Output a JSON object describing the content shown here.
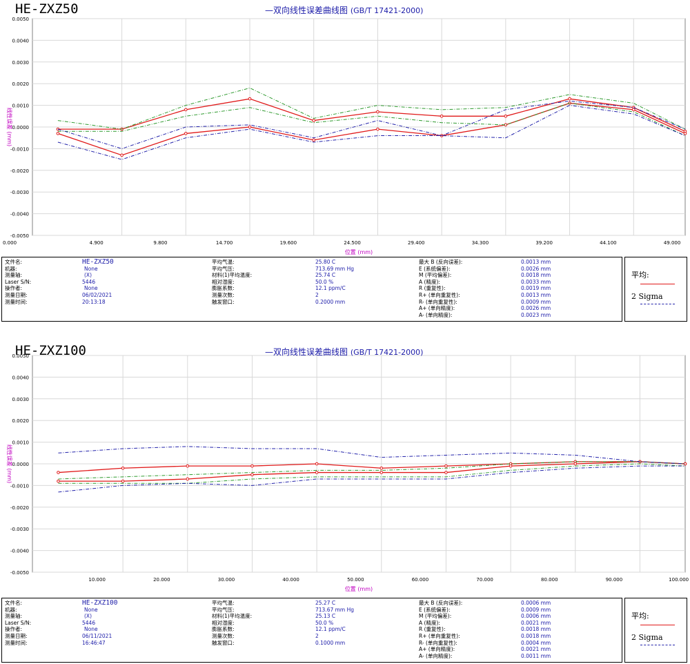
{
  "charts": [
    {
      "title": "HE-ZXZ50",
      "subtitle": "—双向线性误差曲线图",
      "standard": "(GB/T 17421-2000)",
      "info": {
        "col1": [
          {
            "label": "文件名:",
            "value": "HE-ZXZ50"
          },
          {
            "label": "机器:",
            "value": "None"
          },
          {
            "label": "测量轴:",
            "value": "(X)"
          },
          {
            "label": "Laser S/N:",
            "value": "5446"
          },
          {
            "label": "操作者:",
            "value": "None"
          },
          {
            "label": "测量日期:",
            "value": "06/02/2021"
          },
          {
            "label": "测量时间:",
            "value": "20:13:18"
          }
        ],
        "col2": [
          {
            "label": "平均气温:",
            "value": "25.80 C"
          },
          {
            "label": "平均气压:",
            "value": "713.69 mm Hg"
          },
          {
            "label": "材料(1)平均温度:",
            "value": "25.74 C"
          },
          {
            "label": "相对湿度:",
            "value": "50.0 %"
          },
          {
            "label": "膨胀系数:",
            "value": "12.1 ppm/C"
          },
          {
            "label": "测量次数:",
            "value": "2"
          },
          {
            "label": "触发窗口:",
            "value": "0.2000 mm"
          }
        ],
        "col3": [
          {
            "label": "最大 B (反向误差):",
            "value": "0.0013 mm"
          },
          {
            "label": "E (系统偏差):",
            "value": "0.0026 mm"
          },
          {
            "label": "M (平均偏差):",
            "value": "0.0018 mm"
          },
          {
            "label": "A (精度):",
            "value": "0.0033 mm"
          },
          {
            "label": "R (重复性):",
            "value": "0.0019 mm"
          },
          {
            "label": "R+ (单向重复性):",
            "value": "0.0013 mm"
          },
          {
            "label": "R- (单向重复性):",
            "value": "0.0009 mm"
          },
          {
            "label": "A+ (单向精度):",
            "value": "0.0026 mm"
          },
          {
            "label": "A- (单向精度):",
            "value": "0.0023 mm"
          }
        ]
      },
      "legend": {
        "mean": "平均:",
        "sigma": "2 Sigma"
      }
    },
    {
      "title": "HE-ZXZ100",
      "subtitle": "—双向线性误差曲线图",
      "standard": "(GB/T 17421-2000)",
      "info": {
        "col1": [
          {
            "label": "文件名:",
            "value": "HE-ZXZ100"
          },
          {
            "label": "机器:",
            "value": "None"
          },
          {
            "label": "测量轴:",
            "value": "(X)"
          },
          {
            "label": "Laser S/N:",
            "value": "5446"
          },
          {
            "label": "操作者:",
            "value": "None"
          },
          {
            "label": "测量日期:",
            "value": "06/11/2021"
          },
          {
            "label": "测量时间:",
            "value": "16:46:47"
          }
        ],
        "col2": [
          {
            "label": "平均气温:",
            "value": "25.27 C"
          },
          {
            "label": "平均气压:",
            "value": "713.67 mm Hg"
          },
          {
            "label": "材料(1)平均温度:",
            "value": "25.13 C"
          },
          {
            "label": "相对湿度:",
            "value": "50.0 %"
          },
          {
            "label": "膨胀系数:",
            "value": "12.1 ppm/C"
          },
          {
            "label": "测量次数:",
            "value": "2"
          },
          {
            "label": "触发窗口:",
            "value": "0.1000 mm"
          }
        ],
        "col3": [
          {
            "label": "最大 B (反向误差):",
            "value": "0.0006 mm"
          },
          {
            "label": "E (系统偏差):",
            "value": "0.0009 mm"
          },
          {
            "label": "M (平均偏差):",
            "value": "0.0006 mm"
          },
          {
            "label": "A (精度):",
            "value": "0.0021 mm"
          },
          {
            "label": "R (重复性):",
            "value": "0.0018 mm"
          },
          {
            "label": "R+ (单向重复性):",
            "value": "0.0018 mm"
          },
          {
            "label": "R- (单向重复性):",
            "value": "0.0004 mm"
          },
          {
            "label": "A+ (单向精度):",
            "value": "0.0021 mm"
          },
          {
            "label": "A- (单向精度):",
            "value": "0.0011 mm"
          }
        ]
      },
      "legend": {
        "mean": "平均:",
        "sigma": "2 Sigma"
      }
    }
  ],
  "colors": {
    "mean": "#e01818",
    "sigma_green": "#2e9a2e",
    "sigma_blue": "#2222aa",
    "axis_label": "#c000c0",
    "text_blue": "#1a1aa8"
  },
  "chart_data": [
    {
      "type": "line",
      "title": "HE-ZXZ50",
      "xlabel": "位置 (mm)",
      "ylabel": "线性误差 (mm)",
      "xlim": [
        0,
        50
      ],
      "ylim": [
        -0.005,
        0.005
      ],
      "x_ticks": [
        "0.000",
        "4.900",
        "9.800",
        "14.700",
        "19.600",
        "24.500",
        "29.400",
        "34.300",
        "39.200",
        "44.100",
        "49.000"
      ],
      "y_ticks": [
        "0.0050",
        "0.0040",
        "0.0030",
        "0.0020",
        "0.0010",
        "0.0000",
        "-0.0010",
        "-0.0020",
        "-0.0030",
        "-0.0040",
        "-0.0050"
      ],
      "x": [
        1.95,
        6.85,
        11.75,
        16.65,
        21.55,
        26.45,
        31.35,
        36.25,
        41.15,
        46.05,
        50.0
      ],
      "series": [
        {
          "name": "平均",
          "role": "mean",
          "values": [
            -0.0001,
            -0.0001,
            0.0008,
            0.0013,
            0.0003,
            0.0007,
            0.0005,
            0.0005,
            0.0013,
            0.0009,
            -0.0002
          ]
        },
        {
          "name": "平均",
          "role": "mean",
          "values": [
            -0.0003,
            -0.0013,
            -0.0003,
            0.0,
            -0.0006,
            -0.0001,
            -0.0004,
            0.0001,
            0.0011,
            0.0008,
            -0.0003
          ]
        },
        {
          "name": "2 Sigma",
          "role": "sigma-green",
          "values": [
            0.0003,
            -0.0001,
            0.001,
            0.0018,
            0.0004,
            0.001,
            0.0008,
            0.0009,
            0.0015,
            0.0011,
            -0.0001
          ]
        },
        {
          "name": "2 Sigma",
          "role": "sigma-green",
          "values": [
            -0.0002,
            -0.0002,
            0.0005,
            0.0009,
            0.0002,
            0.0005,
            0.0002,
            0.0001,
            0.0011,
            0.0007,
            -0.0004
          ]
        },
        {
          "name": "2 Sigma",
          "role": "sigma-blue",
          "values": [
            -0.0001,
            -0.001,
            0.0,
            0.0001,
            -0.0005,
            0.0003,
            -0.0004,
            0.0008,
            0.0012,
            0.0009,
            -0.0001
          ]
        },
        {
          "name": "2 Sigma",
          "role": "sigma-blue",
          "values": [
            -0.0007,
            -0.0015,
            -0.0005,
            -0.0001,
            -0.0007,
            -0.0004,
            -0.0004,
            -0.0005,
            0.001,
            0.0006,
            -0.0004
          ]
        }
      ]
    },
    {
      "type": "line",
      "title": "HE-ZXZ100",
      "xlabel": "位置 (mm)",
      "ylabel": "线性误差 (mm)",
      "xlim": [
        0,
        101
      ],
      "ylim": [
        -0.005,
        0.005
      ],
      "x_ticks": [
        "10.000",
        "20.000",
        "30.000",
        "40.000",
        "50.000",
        "60.000",
        "70.000",
        "80.000",
        "90.000",
        "100.000"
      ],
      "y_ticks": [
        "0.0050",
        "0.0040",
        "0.0030",
        "0.0020",
        "0.0010",
        "0.0000",
        "-0.0010",
        "-0.0020",
        "-0.0030",
        "-0.0040",
        "-0.0050"
      ],
      "x": [
        4,
        14,
        24,
        34,
        44,
        54,
        64,
        74,
        84,
        94,
        101
      ],
      "series": [
        {
          "name": "平均",
          "role": "mean",
          "values": [
            -0.0004,
            -0.0002,
            -0.0001,
            -0.0001,
            0.0,
            -0.0002,
            -0.0001,
            0.0,
            0.0001,
            0.0001,
            0.0
          ]
        },
        {
          "name": "平均",
          "role": "mean",
          "values": [
            -0.0008,
            -0.0008,
            -0.0007,
            -0.0005,
            -0.0004,
            -0.0004,
            -0.0004,
            -0.0001,
            0.0,
            0.0001,
            0.0
          ]
        },
        {
          "name": "2 Sigma",
          "role": "sigma-green",
          "values": [
            -0.0007,
            -0.0006,
            -0.0005,
            -0.0004,
            -0.0003,
            -0.0003,
            -0.0002,
            0.0,
            0.0001,
            0.0001,
            0.0
          ]
        },
        {
          "name": "2 Sigma",
          "role": "sigma-green",
          "values": [
            -0.0009,
            -0.0009,
            -0.0009,
            -0.0007,
            -0.0006,
            -0.0006,
            -0.0006,
            -0.0003,
            -0.0001,
            0.0,
            -0.0001
          ]
        },
        {
          "name": "2 Sigma",
          "role": "sigma-blue",
          "values": [
            0.0005,
            0.0007,
            0.0008,
            0.0007,
            0.0007,
            0.0003,
            0.0004,
            0.0005,
            0.0004,
            0.0001,
            0.0
          ]
        },
        {
          "name": "2 Sigma",
          "role": "sigma-blue",
          "values": [
            -0.0013,
            -0.001,
            -0.0009,
            -0.001,
            -0.0007,
            -0.0007,
            -0.0007,
            -0.0004,
            -0.0002,
            -0.0001,
            -0.0001
          ]
        }
      ]
    }
  ]
}
